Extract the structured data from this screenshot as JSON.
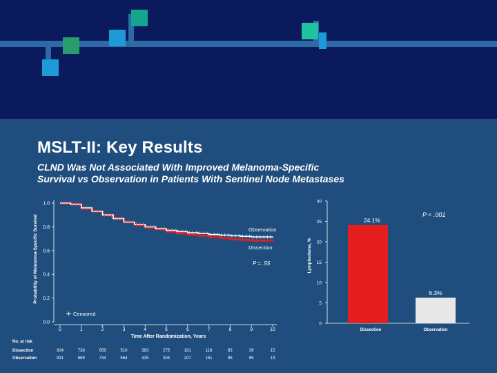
{
  "slide": {
    "title": "MSLT-II: Key Results",
    "subtitle_line1": "CLND Was Not Associated With Improved Melanoma-Specific",
    "subtitle_line2": "Survival vs Observation in Patients With Sentinel Node Metastases"
  },
  "colors": {
    "dissection": "#e41e1e",
    "observation": "#ffffff",
    "bar_observation": "#e8e8e8"
  },
  "chart_data": [
    {
      "type": "line",
      "ylabel": "Probability of Melanoma-Specific Survival",
      "xlabel": "Time After Randomization, Years",
      "xlim": [
        0,
        10
      ],
      "ylim": [
        0,
        1.0
      ],
      "x_ticks": [
        "0",
        "1",
        "2",
        "3",
        "4",
        "5",
        "6",
        "7",
        "8",
        "9",
        "10"
      ],
      "y_ticks": [
        "0.0",
        "0.2",
        "0.4",
        "0.6",
        "0.8",
        "1.0"
      ],
      "legend": "Censored",
      "annotation": "P = .55",
      "series": [
        {
          "name": "Observation",
          "x": [
            0,
            0.5,
            1,
            1.5,
            2,
            2.5,
            3,
            3.5,
            4,
            4.5,
            5,
            5.5,
            6,
            6.5,
            7,
            7.5,
            8,
            8.5,
            9,
            9.5,
            10
          ],
          "y": [
            1.0,
            0.99,
            0.96,
            0.93,
            0.9,
            0.87,
            0.84,
            0.82,
            0.8,
            0.785,
            0.77,
            0.76,
            0.75,
            0.745,
            0.735,
            0.73,
            0.725,
            0.72,
            0.715,
            0.715,
            0.71
          ]
        },
        {
          "name": "Dissection",
          "x": [
            0,
            0.5,
            1,
            1.5,
            2,
            2.5,
            3,
            3.5,
            4,
            4.5,
            5,
            5.5,
            6,
            6.5,
            7,
            7.5,
            8,
            8.5,
            9,
            9.5,
            10
          ],
          "y": [
            1.0,
            0.99,
            0.955,
            0.93,
            0.9,
            0.87,
            0.84,
            0.815,
            0.795,
            0.78,
            0.76,
            0.745,
            0.735,
            0.725,
            0.715,
            0.705,
            0.695,
            0.69,
            0.685,
            0.685,
            0.68
          ]
        }
      ],
      "at_risk": {
        "label": "No. at risk",
        "rows": [
          {
            "name": "Dissection",
            "values": [
              "824",
              "738",
              "656",
              "510",
              "383",
              "275",
              "181",
              "118",
              "83",
              "39",
              "15"
            ]
          },
          {
            "name": "Observation",
            "values": [
              "931",
              "869",
              "734",
              "564",
              "425",
              "304",
              "207",
              "151",
              "95",
              "55",
              "13"
            ]
          }
        ]
      }
    },
    {
      "type": "bar",
      "ylabel": "Lymphedema, %",
      "ylim": [
        0,
        30
      ],
      "y_ticks": [
        "0",
        "5",
        "10",
        "15",
        "20",
        "25",
        "30"
      ],
      "categories": [
        "Dissection",
        "Observation"
      ],
      "values": [
        24.1,
        6.3
      ],
      "value_labels": [
        "24.1%",
        "6.3%"
      ],
      "annotation": "P < .001"
    }
  ]
}
